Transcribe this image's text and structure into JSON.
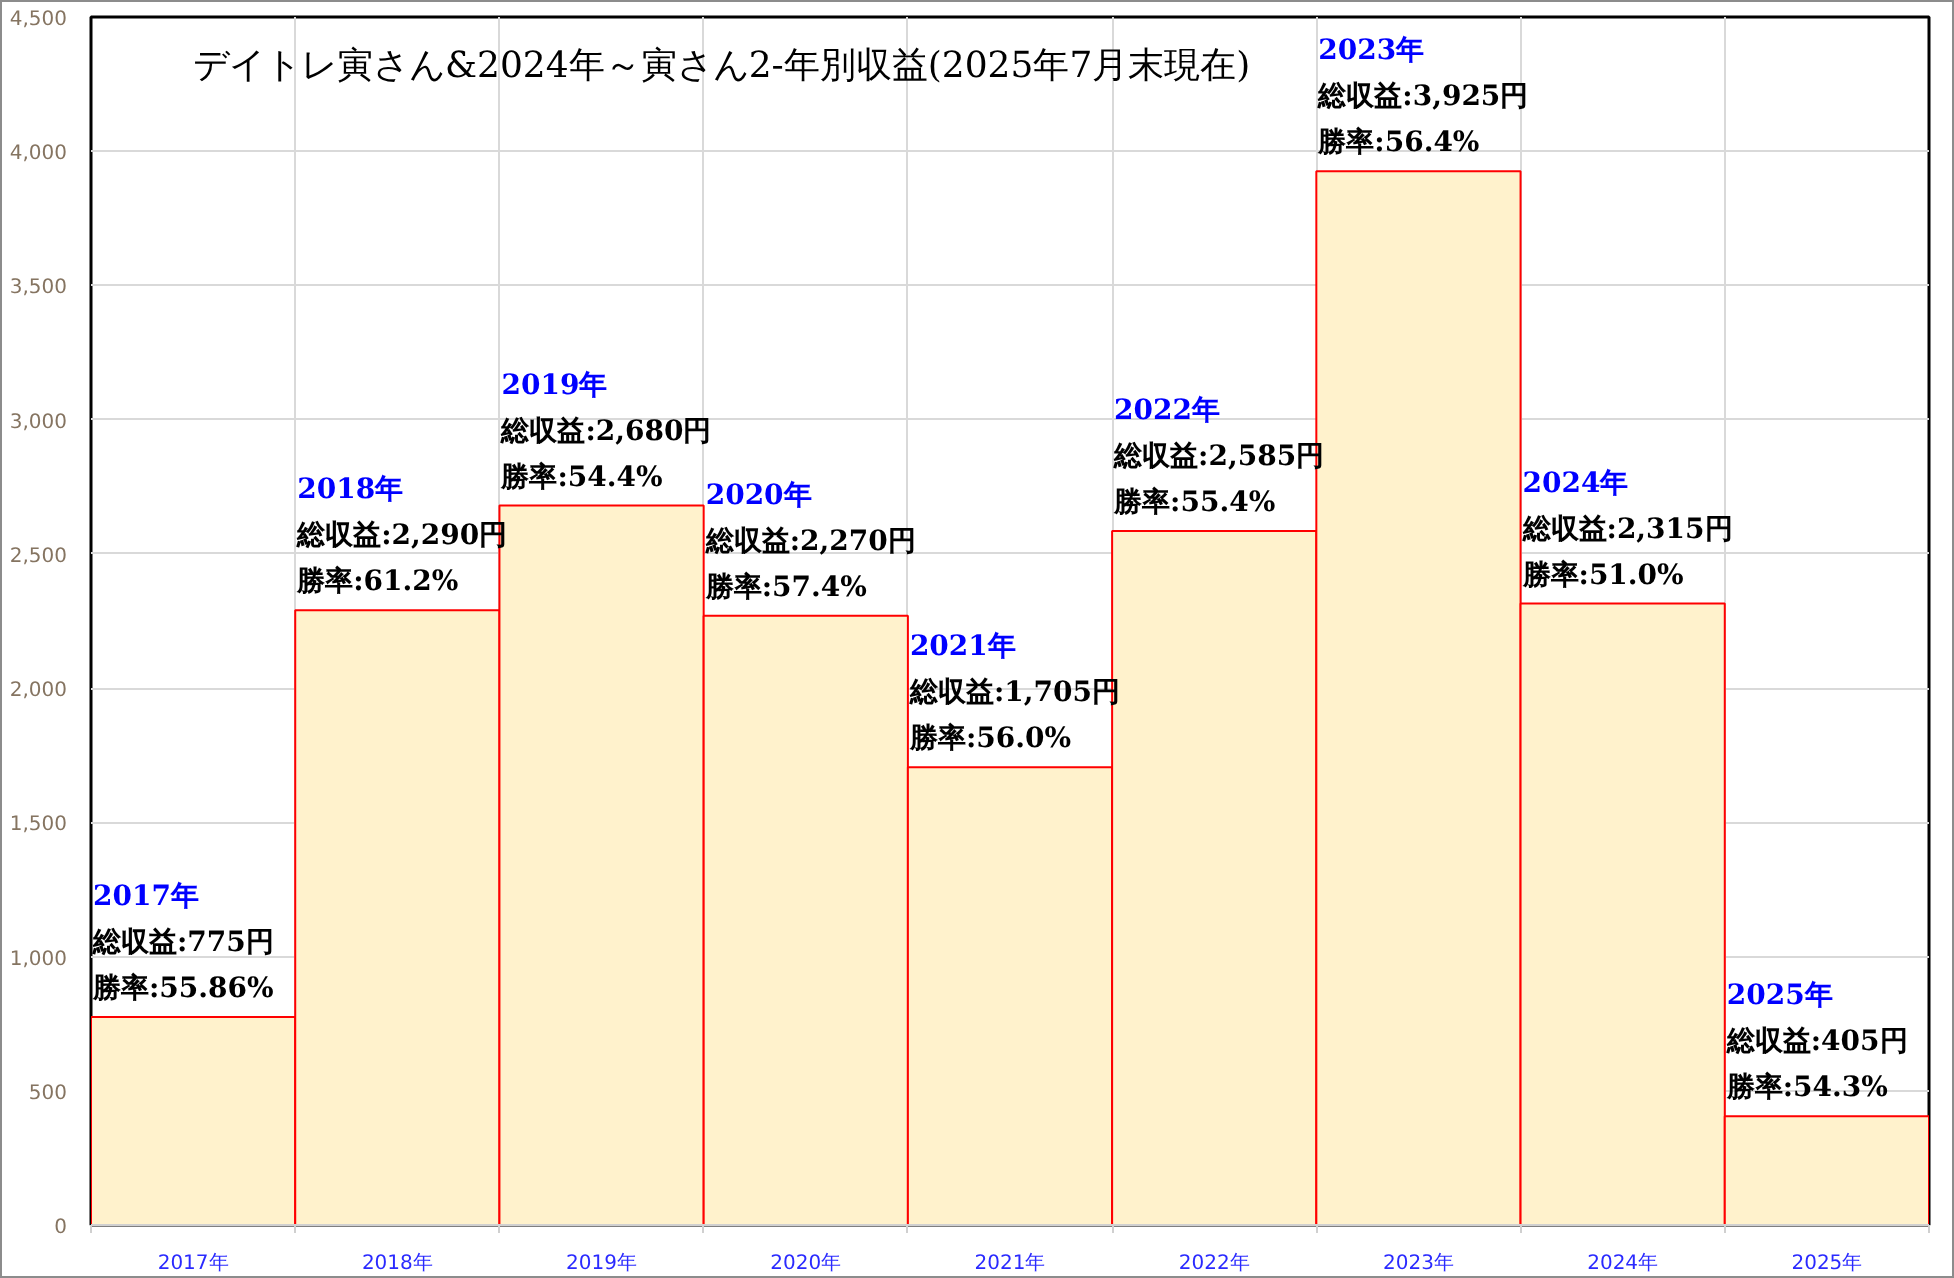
{
  "chart_data": {
    "type": "bar",
    "title": "デイトレ寅さん&2024年～寅さん2-年別収益(2025年7月末現在)",
    "categories": [
      "2017年",
      "2018年",
      "2019年",
      "2020年",
      "2021年",
      "2022年",
      "2023年",
      "2024年",
      "2025年"
    ],
    "values": [
      775,
      2290,
      2680,
      2270,
      1705,
      2585,
      3925,
      2315,
      405
    ],
    "value_labels": [
      "総収益:775円",
      "総収益:2,290円",
      "総収益:2,680円",
      "総収益:2,270円",
      "総収益:1,705円",
      "総収益:2,585円",
      "総収益:3,925円",
      "総収益:2,315円",
      "総収益:405円"
    ],
    "annotations": [
      "2017年",
      {
        "text": "勝率:55.86%",
        "x": "2017年",
        "y": 775
      },
      "2018年",
      {
        "text": "勝率:61.2%",
        "x": "2018年",
        "y": 2290
      },
      "2019年",
      {
        "text": "勝率:54.4%",
        "x": "2019年",
        "y": 2680
      },
      "2020年",
      {
        "text": "勝率:57.4%",
        "x": "2020年",
        "y": 2270
      },
      "2021年",
      {
        "text": "勝率:56.0%",
        "x": "2021年",
        "y": 1705
      },
      "2022年",
      {
        "text": "勝率:55.4%",
        "x": "2022年",
        "y": 2585
      },
      "2023年",
      {
        "text": "勝率:56.4%",
        "x": "2023年",
        "y": 3925
      },
      "2024年",
      {
        "text": "勝率:51.0%",
        "x": "2024年",
        "y": 2315
      },
      "2025年",
      {
        "text": "勝率:54.3%",
        "x": "2025年",
        "y": 405
      }
    ],
    "color": "#fff2cc",
    "ylim": [
      0,
      4500
    ],
    "yticks": [
      0,
      500,
      {
        "value": 1000,
        "label": "1,000"
      },
      {
        "value": 1500,
        "label": "1,500"
      },
      {
        "value": 2000,
        "label": "2,000"
      },
      {
        "value": 2500,
        "label": "2,500"
      },
      {
        "value": 3000,
        "label": "3,000"
      },
      {
        "value": 3500,
        "label": "3,500"
      },
      {
        "value": 4000,
        "label": "4,000"
      },
      {
        "value": 4500,
        "label": "4,500"
      }
    ],
    "grid": true
  }
}
